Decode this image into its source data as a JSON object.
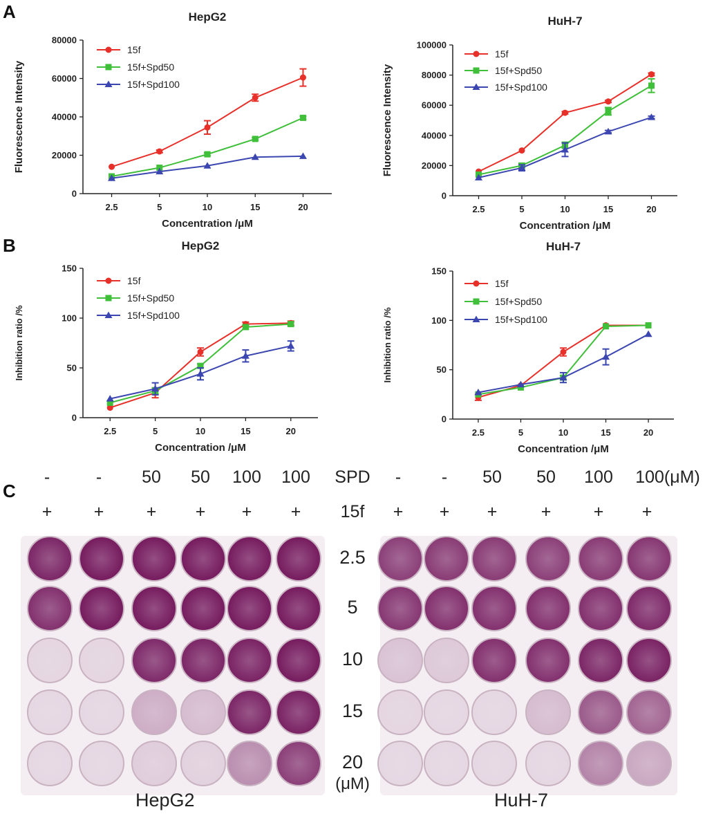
{
  "panels": {
    "a": "A",
    "b": "B",
    "c": "C"
  },
  "colors": {
    "series_15f": "#e8302a",
    "series_spd50": "#3fbf3a",
    "series_spd100": "#3b46b0"
  },
  "chart_data": [
    {
      "id": "a-hepg2",
      "type": "line",
      "title": "HepG2",
      "xlabel": "Concentration /μM",
      "ylabel": "Fluorescence Intensity",
      "categories": [
        "2.5",
        "5",
        "10",
        "15",
        "20"
      ],
      "ylim": [
        0,
        80000
      ],
      "yticks": [
        "0",
        "20000",
        "40000",
        "60000",
        "80000"
      ],
      "ytick_values": [
        0,
        20000,
        40000,
        60000,
        80000
      ],
      "series": [
        {
          "name": "15f",
          "marker": "circle",
          "values": [
            14000,
            22000,
            34500,
            50000,
            60500
          ],
          "errors": [
            500,
            700,
            3500,
            1800,
            4500
          ]
        },
        {
          "name": "15f+Spd50",
          "marker": "square",
          "values": [
            9000,
            13500,
            20500,
            28500,
            39500
          ],
          "errors": [
            400,
            500,
            800,
            600,
            800
          ]
        },
        {
          "name": "15f+Spd100",
          "marker": "triangle",
          "values": [
            8000,
            11500,
            14500,
            19000,
            19500
          ],
          "errors": [
            300,
            400,
            500,
            500,
            400
          ]
        }
      ]
    },
    {
      "id": "a-huh7",
      "type": "line",
      "title": "HuH-7",
      "xlabel": "Concentration /μM",
      "ylabel": "Fluorescence Intensity",
      "categories": [
        "2.5",
        "5",
        "10",
        "15",
        "20"
      ],
      "ylim": [
        0,
        100000
      ],
      "yticks": [
        "0",
        "20000",
        "40000",
        "60000",
        "80000",
        "100000"
      ],
      "ytick_values": [
        0,
        20000,
        40000,
        60000,
        80000,
        100000
      ],
      "series": [
        {
          "name": "15f",
          "marker": "circle",
          "values": [
            16000,
            30000,
            55000,
            62500,
            80500
          ],
          "errors": [
            400,
            600,
            800,
            700,
            900
          ]
        },
        {
          "name": "15f+Spd50",
          "marker": "square",
          "values": [
            14000,
            20000,
            33500,
            56000,
            73000
          ],
          "errors": [
            500,
            1500,
            2000,
            2500,
            4500
          ]
        },
        {
          "name": "15f+Spd100",
          "marker": "triangle",
          "values": [
            12000,
            18500,
            30500,
            42500,
            52000
          ],
          "errors": [
            500,
            2000,
            4500,
            800,
            800
          ]
        }
      ]
    },
    {
      "id": "b-hepg2",
      "type": "line",
      "title": "HepG2",
      "xlabel": "Concentration /μM",
      "ylabel": "Inhibition ratio  /%",
      "categories": [
        "2.5",
        "5",
        "10",
        "15",
        "20"
      ],
      "ylim": [
        0,
        150
      ],
      "yticks": [
        "0",
        "50",
        "100",
        "150"
      ],
      "ytick_values": [
        0,
        50,
        100,
        150
      ],
      "series": [
        {
          "name": "15f",
          "marker": "circle",
          "values": [
            10,
            25,
            66,
            94,
            95
          ],
          "errors": [
            1,
            5,
            4,
            2,
            2
          ]
        },
        {
          "name": "15f+Spd50",
          "marker": "square",
          "values": [
            15,
            27,
            52,
            91,
            94
          ],
          "errors": [
            1,
            3,
            2,
            2,
            2
          ]
        },
        {
          "name": "15f+Spd100",
          "marker": "triangle",
          "values": [
            19,
            29,
            44,
            62,
            72
          ],
          "errors": [
            1,
            6,
            6,
            6,
            5
          ]
        }
      ]
    },
    {
      "id": "b-huh7",
      "type": "line",
      "title": "HuH-7",
      "xlabel": "Concentration /μM",
      "ylabel": "Inhibition ratio  /%",
      "categories": [
        "2.5",
        "5",
        "10",
        "15",
        "20"
      ],
      "ylim": [
        0,
        150
      ],
      "yticks": [
        "0",
        "50",
        "100",
        "150"
      ],
      "ytick_values": [
        0,
        50,
        100,
        150
      ],
      "series": [
        {
          "name": "15f",
          "marker": "circle",
          "values": [
            22,
            34,
            68,
            95,
            95
          ],
          "errors": [
            3,
            1,
            4,
            1,
            1
          ]
        },
        {
          "name": "15f+Spd50",
          "marker": "square",
          "values": [
            25,
            32,
            42,
            94,
            95
          ],
          "errors": [
            1,
            1,
            2,
            1,
            1
          ]
        },
        {
          "name": "15f+Spd100",
          "marker": "triangle",
          "values": [
            27,
            35,
            42,
            63,
            86
          ],
          "errors": [
            1,
            1,
            5,
            8,
            1
          ]
        }
      ]
    }
  ],
  "panel_c": {
    "spd_label": "SPD",
    "compound_label": "15f",
    "unit_label": "(μM)",
    "left_spd": [
      "-",
      "-",
      "50",
      "50",
      "100",
      "100"
    ],
    "right_spd": [
      "-",
      "-",
      "50",
      "50",
      "100",
      "100(μM)"
    ],
    "compound_marks": [
      "+",
      "+",
      "+",
      "+",
      "+",
      "+"
    ],
    "concentrations": [
      "2.5",
      "5",
      "10",
      "15",
      "20"
    ],
    "plate_left_label": "HepG2",
    "plate_right_label": "HuH-7",
    "staining_left": [
      [
        0.9,
        0.95,
        0.95,
        0.95,
        0.95,
        0.95
      ],
      [
        0.85,
        0.95,
        0.95,
        0.95,
        0.95,
        0.95
      ],
      [
        0.06,
        0.06,
        0.88,
        0.9,
        0.92,
        0.95
      ],
      [
        0.05,
        0.05,
        0.25,
        0.18,
        0.9,
        0.92
      ],
      [
        0.05,
        0.05,
        0.1,
        0.08,
        0.4,
        0.78
      ]
    ],
    "staining_right": [
      [
        0.78,
        0.8,
        0.8,
        0.78,
        0.8,
        0.82
      ],
      [
        0.82,
        0.85,
        0.85,
        0.85,
        0.85,
        0.88
      ],
      [
        0.15,
        0.12,
        0.85,
        0.85,
        0.9,
        0.92
      ],
      [
        0.06,
        0.05,
        0.05,
        0.18,
        0.65,
        0.6
      ],
      [
        0.05,
        0.05,
        0.05,
        0.05,
        0.45,
        0.28
      ]
    ]
  }
}
